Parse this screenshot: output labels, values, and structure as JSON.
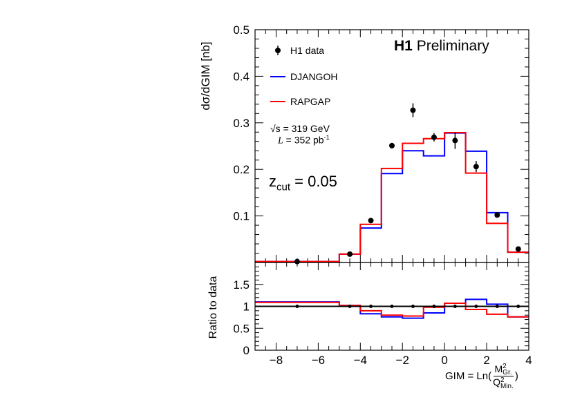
{
  "chart_data": [
    {
      "type": "line",
      "panel": "main",
      "title": "H1 Preliminary",
      "title_bold": "H1",
      "title_rest": "Preliminary",
      "ylabel": "dσ/dGIM [nb]",
      "xlim": [
        -9,
        4
      ],
      "ylim": [
        0,
        0.5
      ],
      "yticks": [
        0.1,
        0.2,
        0.3,
        0.4,
        0.5
      ],
      "bin_edges": [
        -9,
        -5,
        -4,
        -3,
        -2,
        -1,
        0,
        1,
        2,
        3,
        4
      ],
      "series": [
        {
          "name": "H1 data",
          "kind": "points",
          "color": "#000000",
          "x": [
            -7,
            -4.5,
            -3.5,
            -2.5,
            -1.5,
            -0.5,
            0.5,
            1.5,
            2.5,
            3.5
          ],
          "values": [
            0.002,
            0.018,
            0.09,
            0.251,
            0.327,
            0.269,
            0.262,
            0.206,
            0.102,
            0.029
          ],
          "errors": [
            0.001,
            0.002,
            0.004,
            0.006,
            0.015,
            0.009,
            0.018,
            0.012,
            0.004,
            0.002
          ]
        },
        {
          "name": "DJANGOH",
          "kind": "step",
          "color": "#0000ff",
          "values": [
            0.002,
            0.018,
            0.074,
            0.191,
            0.24,
            0.229,
            0.278,
            0.239,
            0.107,
            0.022
          ]
        },
        {
          "name": "RAPGAP",
          "kind": "step",
          "color": "#ff0000",
          "values": [
            0.002,
            0.018,
            0.082,
            0.202,
            0.256,
            0.266,
            0.279,
            0.192,
            0.084,
            0.022
          ]
        }
      ],
      "legend": [
        "H1 data",
        "DJANGOH",
        "RAPGAP"
      ],
      "legend_position": "top-left",
      "annotations": {
        "sqrt_s": "√s = 319 GeV",
        "lumi_L": "L",
        "lumi_rest": " = 352 pb",
        "lumi_exp": "-1",
        "zcut_z": "z",
        "zcut_sub": "cut",
        "zcut_rest": " = 0.05"
      }
    },
    {
      "type": "line",
      "panel": "ratio",
      "ylabel": "Ratio to data",
      "xlabel_prefix": "GIM = Ln(",
      "xlabel_num": "M",
      "xlabel_num_sub": "Gr.",
      "xlabel_den": "Q",
      "xlabel_den_sub": "Min.",
      "xlabel_sup": "2",
      "xlabel_suffix": ")",
      "xlim": [
        -9,
        4
      ],
      "ylim": [
        0,
        2
      ],
      "yticks": [
        0,
        0.5,
        1,
        1.5
      ],
      "ytick_labels": [
        "0",
        "0.5",
        "1",
        "1.5"
      ],
      "xticks": [
        -8,
        -6,
        -4,
        -2,
        0,
        2,
        4
      ],
      "xtick_labels": [
        "−8",
        "−6",
        "−4",
        "−2",
        "0",
        "2",
        "4"
      ],
      "bin_edges": [
        -9,
        -5,
        -4,
        -3,
        -2,
        -1,
        0,
        1,
        2,
        3,
        4
      ],
      "series": [
        {
          "name": "H1 data",
          "kind": "points",
          "color": "#000000",
          "x": [
            -7,
            -4.5,
            -3.5,
            -2.5,
            -1.5,
            -0.5,
            0.5,
            1.5,
            2.5,
            3.5
          ],
          "values": [
            1,
            1,
            1,
            1,
            1,
            1,
            1,
            1,
            1,
            1
          ]
        },
        {
          "name": "DJANGOH",
          "kind": "step",
          "color": "#0000ff",
          "values": [
            1.1,
            1.02,
            0.83,
            0.76,
            0.73,
            0.85,
            1.07,
            1.16,
            1.05,
            0.76
          ]
        },
        {
          "name": "RAPGAP",
          "kind": "step",
          "color": "#ff0000",
          "values": [
            1.09,
            1.02,
            0.9,
            0.8,
            0.78,
            0.98,
            1.07,
            0.93,
            0.82,
            0.76
          ]
        }
      ]
    }
  ]
}
